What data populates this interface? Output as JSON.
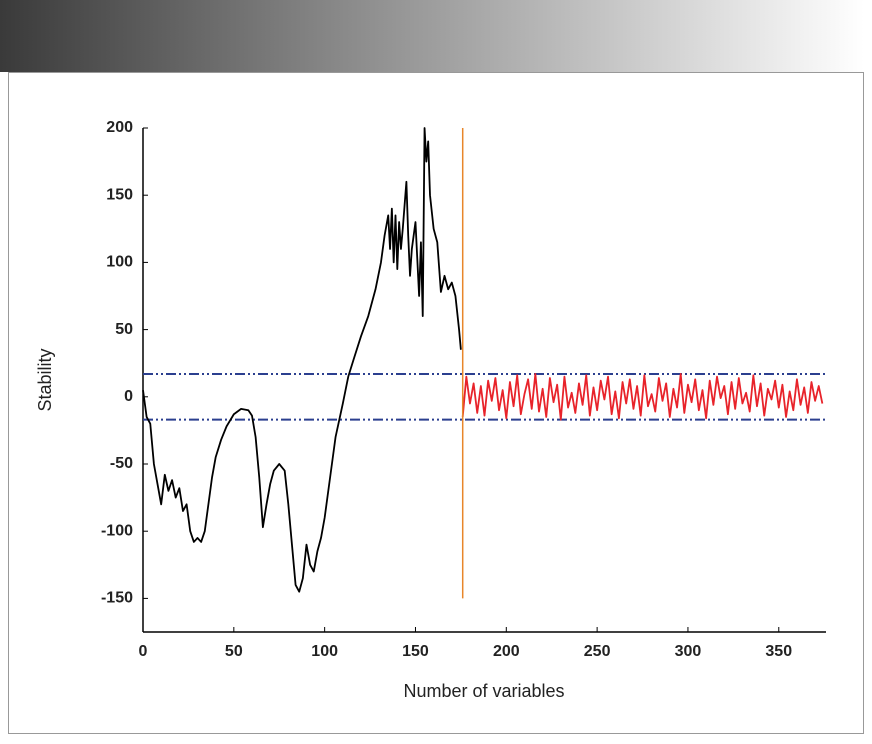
{
  "chart_data": {
    "type": "line",
    "x_label": "Number of variables",
    "y_label": "Stability",
    "xlim": [
      0,
      376
    ],
    "ylim": [
      -175,
      200
    ],
    "xticks": [
      0,
      50,
      100,
      150,
      200,
      250,
      300,
      350
    ],
    "yticks": [
      -150,
      -100,
      -50,
      0,
      50,
      100,
      150,
      200
    ],
    "hlines": [
      17,
      -17
    ],
    "hline_color": "#2b3f8f",
    "vline": 176,
    "vline_range": [
      -150,
      200
    ],
    "vline_color": "#e8862a",
    "series": [
      {
        "color": "#000000",
        "x": [
          0,
          2,
          4,
          6,
          8,
          10,
          12,
          14,
          16,
          18,
          20,
          22,
          24,
          26,
          28,
          30,
          32,
          34,
          36,
          38,
          40,
          43,
          46,
          50,
          54,
          58,
          60,
          62,
          64,
          66,
          68,
          70,
          72,
          75,
          78,
          80,
          82,
          84,
          86,
          88,
          90,
          92,
          94,
          96,
          98,
          100,
          103,
          106,
          110,
          113,
          116,
          120,
          124,
          128,
          131,
          133,
          135,
          136,
          137,
          138,
          139,
          140,
          141,
          142,
          143,
          145,
          146,
          147,
          148,
          150,
          152,
          153,
          154,
          155,
          156,
          157,
          158,
          160,
          162,
          164,
          166,
          168,
          170,
          172,
          174,
          175
        ],
        "values": [
          5,
          -15,
          -20,
          -50,
          -65,
          -80,
          -58,
          -70,
          -62,
          -75,
          -68,
          -85,
          -80,
          -100,
          -108,
          -105,
          -108,
          -100,
          -80,
          -60,
          -45,
          -32,
          -22,
          -13,
          -9,
          -10,
          -14,
          -30,
          -60,
          -97,
          -80,
          -65,
          -55,
          -50,
          -55,
          -80,
          -110,
          -140,
          -145,
          -135,
          -110,
          -125,
          -130,
          -115,
          -105,
          -90,
          -60,
          -30,
          -5,
          15,
          28,
          45,
          60,
          80,
          100,
          120,
          135,
          110,
          140,
          100,
          135,
          95,
          130,
          110,
          125,
          160,
          120,
          90,
          110,
          130,
          75,
          115,
          60,
          200,
          175,
          190,
          150,
          125,
          115,
          78,
          90,
          80,
          85,
          75,
          50,
          35
        ]
      },
      {
        "color": "#e8232a",
        "x": [
          176,
          178,
          180,
          182,
          184,
          186,
          188,
          190,
          192,
          194,
          196,
          198,
          200,
          202,
          204,
          206,
          208,
          210,
          212,
          214,
          216,
          218,
          220,
          222,
          224,
          226,
          228,
          230,
          232,
          234,
          236,
          238,
          240,
          242,
          244,
          246,
          248,
          250,
          252,
          254,
          256,
          258,
          260,
          262,
          264,
          266,
          268,
          270,
          272,
          274,
          276,
          278,
          280,
          282,
          284,
          286,
          288,
          290,
          292,
          294,
          296,
          298,
          300,
          302,
          304,
          306,
          308,
          310,
          312,
          314,
          316,
          318,
          320,
          322,
          324,
          326,
          328,
          330,
          332,
          334,
          336,
          338,
          340,
          342,
          344,
          346,
          348,
          350,
          352,
          354,
          356,
          358,
          360,
          362,
          364,
          366,
          368,
          370,
          372,
          374
        ],
        "values": [
          -15,
          15,
          -5,
          10,
          -12,
          8,
          -14,
          12,
          -3,
          14,
          -10,
          5,
          -16,
          11,
          -7,
          16,
          -13,
          2,
          13,
          -9,
          17,
          -11,
          6,
          -15,
          14,
          -4,
          9,
          -17,
          15,
          -8,
          3,
          -12,
          10,
          -6,
          16,
          -14,
          7,
          -10,
          12,
          -2,
          15,
          -13,
          4,
          -16,
          11,
          -5,
          13,
          -9,
          8,
          -14,
          16,
          -7,
          2,
          -11,
          14,
          -3,
          10,
          -15,
          6,
          -8,
          17,
          -12,
          9,
          -4,
          13,
          -10,
          5,
          -16,
          12,
          -6,
          15,
          -1,
          8,
          -13,
          11,
          -9,
          14,
          -5,
          3,
          -11,
          16,
          -7,
          10,
          -14,
          6,
          -2,
          12,
          -8,
          9,
          -15,
          4,
          -10,
          13,
          -6,
          7,
          -12,
          11,
          -3,
          8,
          -5
        ]
      }
    ]
  }
}
